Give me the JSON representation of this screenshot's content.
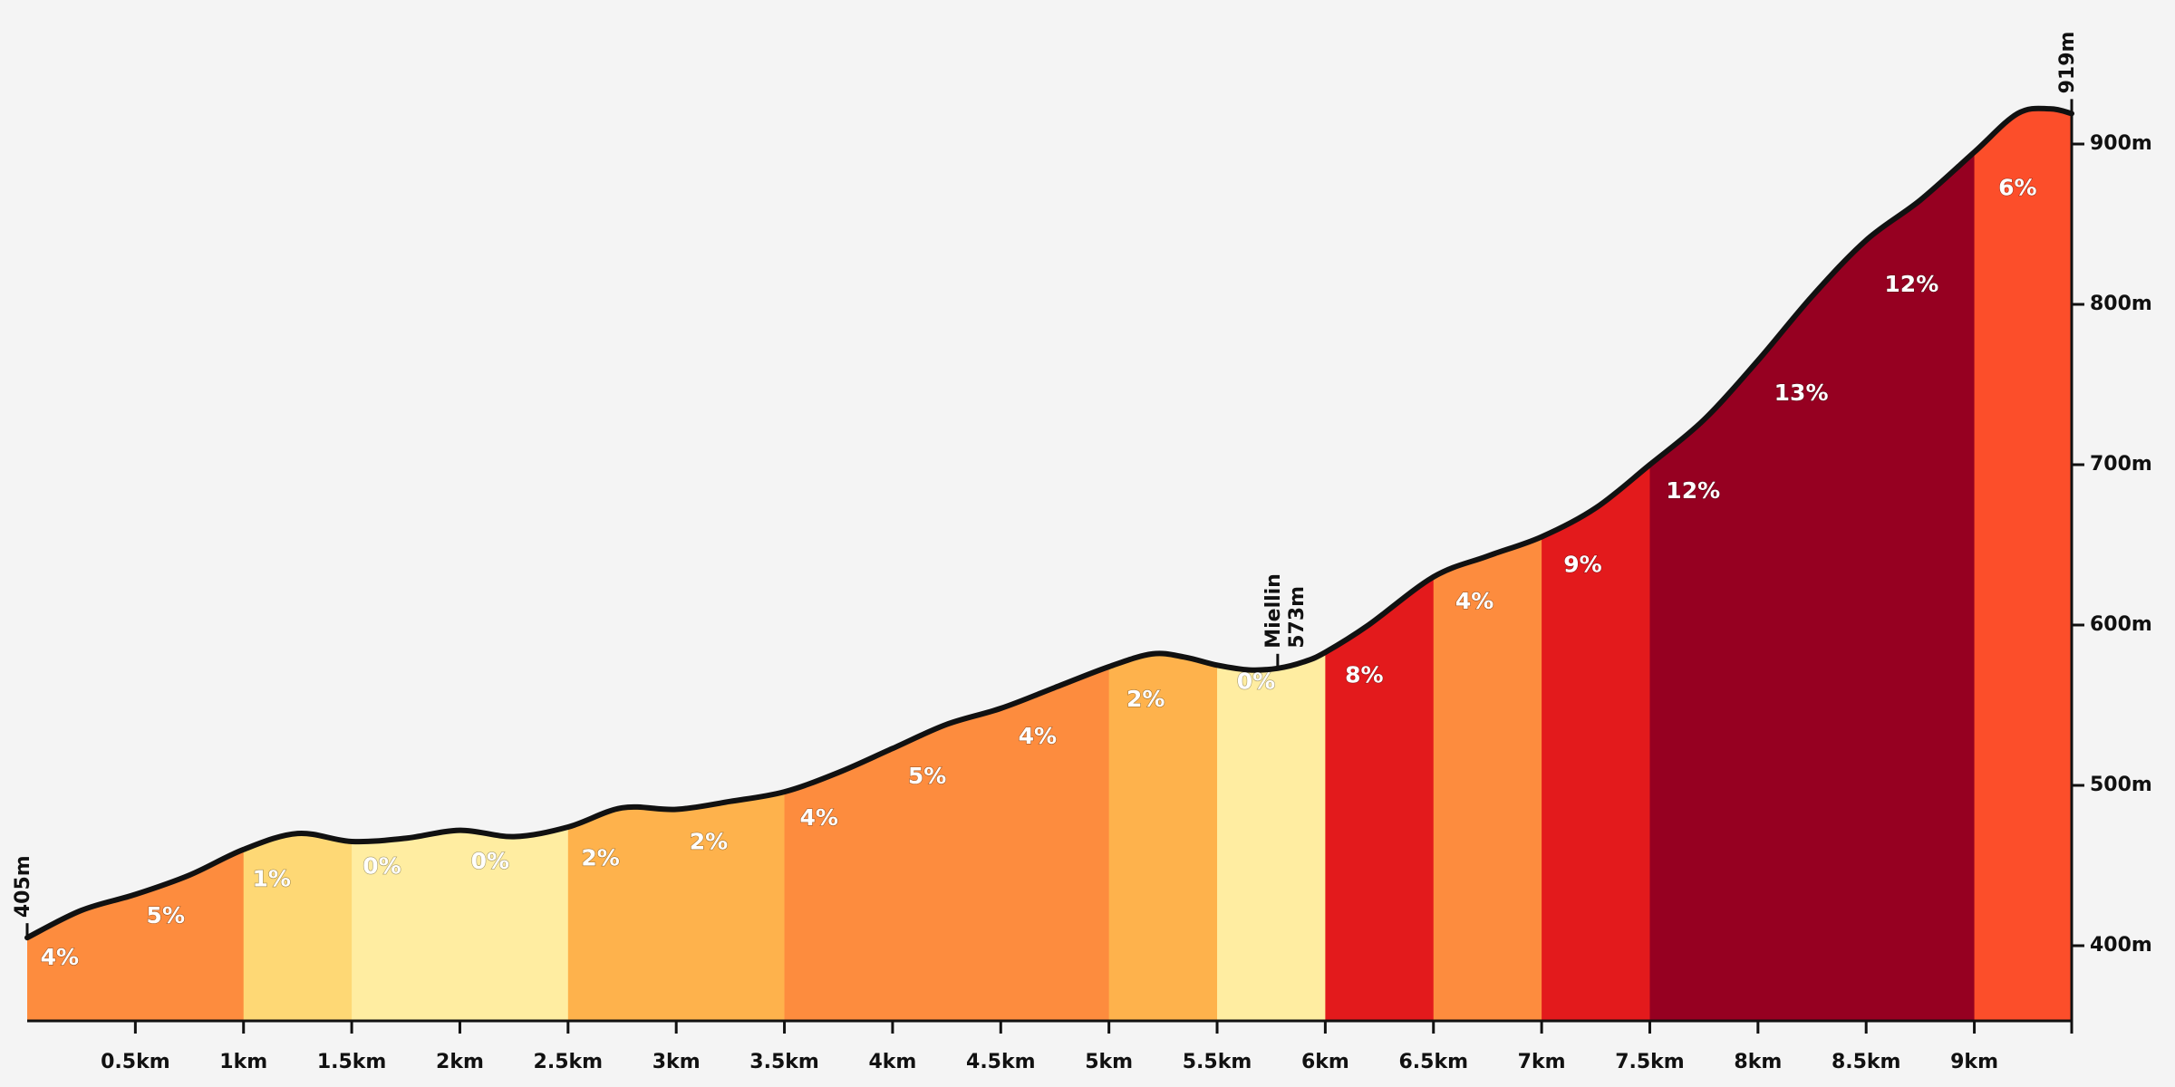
{
  "chart_data": {
    "type": "area",
    "title": "",
    "xlabel": "",
    "ylabel": "",
    "xlim": [
      0,
      9.45
    ],
    "ylim": [
      355,
      950
    ],
    "x_tick_labels": [
      "0.5km",
      "1km",
      "1.5km",
      "2km",
      "2.5km",
      "3km",
      "3.5km",
      "4km",
      "4.5km",
      "5km",
      "5.5km",
      "6km",
      "6.5km",
      "7km",
      "7.5km",
      "8km",
      "8.5km",
      "9km"
    ],
    "y_tick_labels": [
      "400m",
      "500m",
      "600m",
      "700m",
      "800m",
      "900m"
    ],
    "profile": {
      "x": [
        0,
        0.25,
        0.5,
        0.75,
        1.0,
        1.25,
        1.5,
        1.75,
        2.0,
        2.25,
        2.5,
        2.75,
        3.0,
        3.25,
        3.5,
        3.75,
        4.0,
        4.25,
        4.5,
        4.75,
        5.0,
        5.2,
        5.35,
        5.5,
        5.65,
        5.78,
        5.9,
        6.0,
        6.2,
        6.5,
        6.75,
        7.0,
        7.25,
        7.5,
        7.75,
        8.0,
        8.25,
        8.5,
        8.75,
        9.0,
        9.2,
        9.35,
        9.45
      ],
      "elevation": [
        405,
        422,
        432,
        444,
        460,
        470,
        465,
        467,
        472,
        468,
        474,
        486,
        485,
        490,
        496,
        508,
        523,
        538,
        548,
        561,
        574,
        582,
        580,
        575,
        572,
        573,
        577,
        583,
        600,
        630,
        643,
        655,
        673,
        700,
        728,
        765,
        805,
        840,
        865,
        895,
        919,
        922,
        919
      ]
    },
    "segments": [
      {
        "start": 0,
        "end": 1.0,
        "grade": "4%",
        "label_x": 0.15,
        "label_elev": 392,
        "color": "#fd8c3e"
      },
      {
        "start": 0,
        "end": 1.0,
        "grade": "5%",
        "label_x": 0.64,
        "label_elev": 418,
        "color": "#fd8c3e",
        "no_fill": true
      },
      {
        "start": 1.0,
        "end": 1.5,
        "grade": "1%",
        "label_x": 1.13,
        "label_elev": 441,
        "color": "#fed875"
      },
      {
        "start": 1.5,
        "end": 2.5,
        "grade": "0%",
        "label_x": 1.64,
        "label_elev": 449,
        "color": "#ffeda1"
      },
      {
        "start": 1.5,
        "end": 2.5,
        "grade": "0%",
        "label_x": 2.14,
        "label_elev": 452,
        "color": "#ffeda1",
        "no_fill": true
      },
      {
        "start": 2.5,
        "end": 3.5,
        "grade": "2%",
        "label_x": 2.65,
        "label_elev": 454,
        "color": "#feb24c"
      },
      {
        "start": 2.5,
        "end": 3.5,
        "grade": "2%",
        "label_x": 3.15,
        "label_elev": 464,
        "color": "#feb24c",
        "no_fill": true
      },
      {
        "start": 3.5,
        "end": 5.0,
        "grade": "4%",
        "label_x": 3.66,
        "label_elev": 479,
        "color": "#fd8c3e"
      },
      {
        "start": 3.5,
        "end": 5.0,
        "grade": "5%",
        "label_x": 4.16,
        "label_elev": 505,
        "color": "#fd8c3e",
        "no_fill": true
      },
      {
        "start": 3.5,
        "end": 5.0,
        "grade": "4%",
        "label_x": 4.67,
        "label_elev": 530,
        "color": "#fd8c3e",
        "no_fill": true
      },
      {
        "start": 5.0,
        "end": 5.5,
        "grade": "2%",
        "label_x": 5.17,
        "label_elev": 553,
        "color": "#feb24c"
      },
      {
        "start": 5.5,
        "end": 6.0,
        "grade": "0%",
        "label_x": 5.68,
        "label_elev": 564,
        "color": "#ffeda1"
      },
      {
        "start": 6.0,
        "end": 6.5,
        "grade": "8%",
        "label_x": 6.18,
        "label_elev": 568,
        "color": "#e31a1c"
      },
      {
        "start": 6.5,
        "end": 7.0,
        "grade": "4%",
        "label_x": 6.69,
        "label_elev": 614,
        "color": "#fd8c3e"
      },
      {
        "start": 7.0,
        "end": 7.5,
        "grade": "9%",
        "label_x": 7.19,
        "label_elev": 637,
        "color": "#e31a1c"
      },
      {
        "start": 7.5,
        "end": 9.0,
        "grade": "12%",
        "label_x": 7.7,
        "label_elev": 683,
        "color": "#960021"
      },
      {
        "start": 7.5,
        "end": 9.0,
        "grade": "13%",
        "label_x": 8.2,
        "label_elev": 744,
        "color": "#960021",
        "no_fill": true
      },
      {
        "start": 7.5,
        "end": 9.0,
        "grade": "12%",
        "label_x": 8.71,
        "label_elev": 812,
        "color": "#960021",
        "no_fill": true
      },
      {
        "start": 9.0,
        "end": 9.45,
        "grade": "6%",
        "label_x": 9.2,
        "label_elev": 872,
        "color": "#fc4e2a"
      }
    ],
    "markers": [
      {
        "name": "",
        "elevation_label": "405m",
        "x": 0,
        "elevation": 405
      },
      {
        "name": "Miellin",
        "elevation_label": "573m",
        "x": 5.78,
        "elevation": 573
      },
      {
        "name": "",
        "elevation_label": "919m",
        "x": 9.45,
        "elevation": 919
      }
    ]
  }
}
